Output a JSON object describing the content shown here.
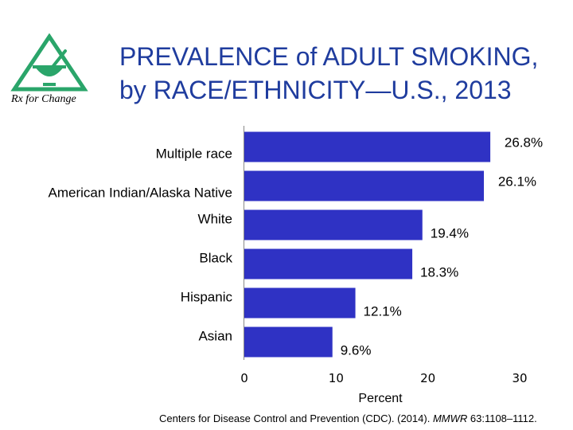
{
  "logo": {
    "text": "Rx for Change",
    "icon": "mortar-pestle-triangle-logo"
  },
  "title": {
    "line1": "PREVALENCE of ADULT SMOKING,",
    "line2": "by RACE/ETHNICITY—U.S., 2013"
  },
  "chart_data": {
    "type": "bar",
    "orientation": "horizontal",
    "title": "PREVALENCE of ADULT SMOKING, by RACE/ETHNICITY—U.S., 2013",
    "categories": [
      "Multiple race",
      "American Indian/Alaska Native",
      "White",
      "Black",
      "Hispanic",
      "Asian"
    ],
    "values": [
      26.8,
      26.1,
      19.4,
      18.3,
      12.1,
      9.6
    ],
    "data_labels": [
      "26.8%",
      "26.1%",
      "19.4%",
      "18.3%",
      "12.1%",
      "9.6%"
    ],
    "xlabel": "Percent",
    "ylabel": "",
    "xlim": [
      0,
      30
    ],
    "xticks": [
      0,
      10,
      20,
      30
    ],
    "grid": false,
    "bar_color": "#2f32c4"
  },
  "source": {
    "prefix": "Centers for Disease Control and Prevention (CDC). (2014). ",
    "journal": "MMWR",
    "suffix": " 63:1108–1112."
  }
}
